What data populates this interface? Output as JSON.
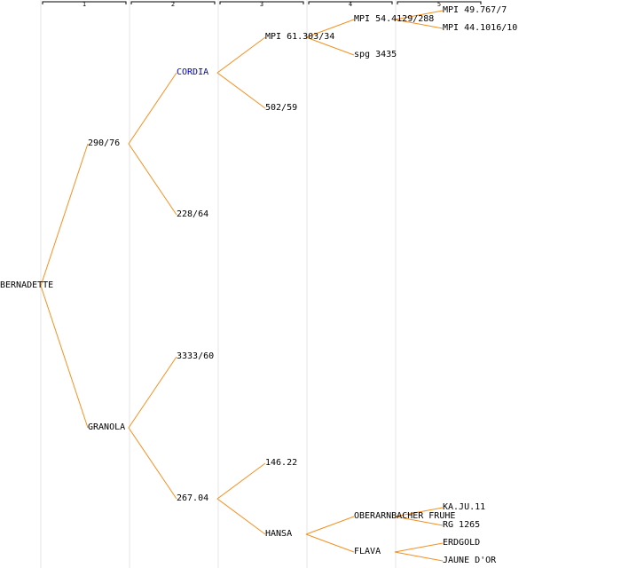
{
  "generations": [
    "1",
    "2",
    "3",
    "4",
    "5"
  ],
  "colors": {
    "edge": "#f5901e",
    "column": "#e4e4e4",
    "header": "#000000",
    "link": "#0000cc"
  },
  "nodes": [
    {
      "id": "n0",
      "label": "BERNADETTE"
    },
    {
      "id": "n1",
      "label": "290/76"
    },
    {
      "id": "n2",
      "label": "GRANOLA"
    },
    {
      "id": "n3",
      "label": "CORDIA",
      "link": true
    },
    {
      "id": "n4",
      "label": "228/64"
    },
    {
      "id": "n5",
      "label": "3333/60"
    },
    {
      "id": "n6",
      "label": "267.04"
    },
    {
      "id": "n7",
      "label": "MPI 61.303/34"
    },
    {
      "id": "n8",
      "label": "502/59"
    },
    {
      "id": "n9",
      "label": "146.22"
    },
    {
      "id": "n10",
      "label": "HANSA"
    },
    {
      "id": "n11",
      "label": "MPI 54.4129/288"
    },
    {
      "id": "n12",
      "label": "spg 3435"
    },
    {
      "id": "n13",
      "label": "OBERARNBACHER FRUHE"
    },
    {
      "id": "n14",
      "label": "FLAVA"
    },
    {
      "id": "n15",
      "label": "MPI 49.767/7"
    },
    {
      "id": "n16",
      "label": "MPI 44.1016/10"
    },
    {
      "id": "n17",
      "label": "KA.JU.11"
    },
    {
      "id": "n18",
      "label": "RG 1265"
    },
    {
      "id": "n19",
      "label": "ERDGOLD"
    },
    {
      "id": "n20",
      "label": "JAUNE D'OR"
    }
  ],
  "edges": [
    [
      "n0",
      "n1"
    ],
    [
      "n0",
      "n2"
    ],
    [
      "n1",
      "n3"
    ],
    [
      "n1",
      "n4"
    ],
    [
      "n2",
      "n5"
    ],
    [
      "n2",
      "n6"
    ],
    [
      "n3",
      "n7"
    ],
    [
      "n3",
      "n8"
    ],
    [
      "n6",
      "n9"
    ],
    [
      "n6",
      "n10"
    ],
    [
      "n7",
      "n11"
    ],
    [
      "n7",
      "n12"
    ],
    [
      "n10",
      "n13"
    ],
    [
      "n10",
      "n14"
    ],
    [
      "n11",
      "n15"
    ],
    [
      "n11",
      "n16"
    ],
    [
      "n13",
      "n17"
    ],
    [
      "n13",
      "n18"
    ],
    [
      "n14",
      "n19"
    ],
    [
      "n14",
      "n20"
    ]
  ]
}
